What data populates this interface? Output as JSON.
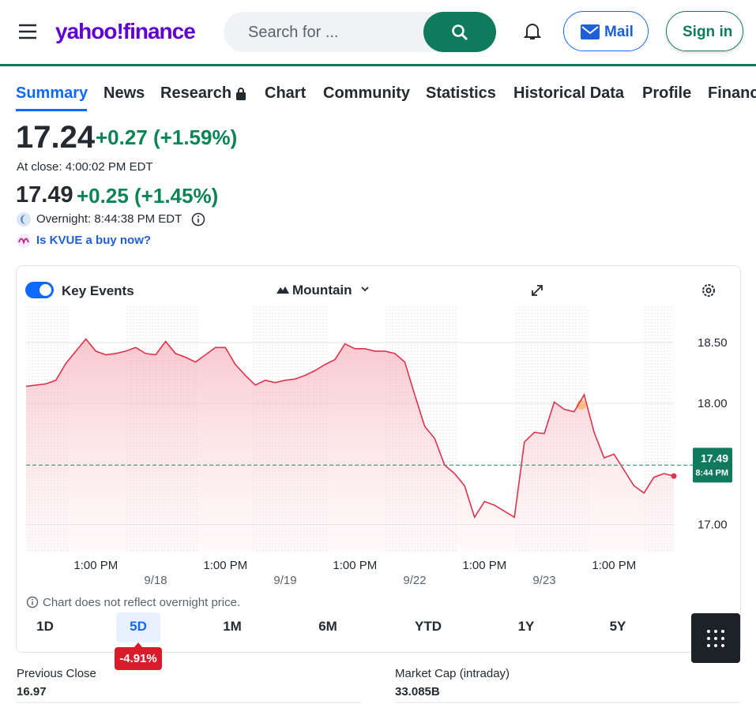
{
  "header": {
    "logo": "yahoo!finance",
    "search_placeholder": "Search for ...",
    "mail": "Mail",
    "sign_in": "Sign in"
  },
  "nav": [
    "Summary",
    "News",
    "Research",
    "Chart",
    "Community",
    "Statistics",
    "Historical Data",
    "Profile",
    "Financials"
  ],
  "quote": {
    "price": "17.24",
    "change": "+0.27 (+1.59%)",
    "close_time": "At close: 4:00:02 PM EDT",
    "overnight_price": "17.49",
    "overnight_change": "+0.25 (+1.45%)",
    "overnight_time": "Overnight: 8:44:38 PM EDT",
    "buy_link": "Is KVUE a buy now?"
  },
  "chart_controls": {
    "key_events": "Key Events",
    "chart_type": "Mountain"
  },
  "chart_data": {
    "type": "line",
    "color": "#e0314b",
    "x": [
      0,
      0.5,
      1,
      1.5,
      2,
      2.5,
      3,
      3.5,
      4,
      4.5,
      5,
      5.5,
      6,
      6.5,
      7,
      7.5,
      8,
      8.5,
      9,
      9.5,
      10,
      10.5,
      11,
      11.5,
      12,
      12.5,
      13,
      13.5,
      14,
      14.5,
      15,
      15.5,
      16,
      16.5,
      17,
      17.5,
      18,
      18.5,
      19,
      19.5,
      20,
      20.5,
      21,
      21.5,
      22,
      22.5,
      23,
      23.5,
      24,
      24.5,
      25,
      25.5,
      26,
      26.5,
      27,
      27.5,
      28,
      28.5,
      29,
      29.5,
      30,
      30.5,
      31,
      31.5,
      32,
      32.5
    ],
    "values": [
      18.14,
      18.15,
      18.16,
      18.19,
      18.33,
      18.43,
      18.53,
      18.43,
      18.4,
      18.41,
      18.43,
      18.46,
      18.41,
      18.4,
      18.51,
      18.41,
      18.38,
      18.34,
      18.4,
      18.46,
      18.46,
      18.32,
      18.23,
      18.15,
      18.19,
      18.17,
      18.19,
      18.2,
      18.23,
      18.27,
      18.32,
      18.36,
      18.49,
      18.45,
      18.45,
      18.43,
      18.43,
      18.41,
      18.34,
      18.07,
      17.81,
      17.71,
      17.49,
      17.42,
      17.32,
      17.06,
      17.19,
      17.16,
      17.11,
      17.06,
      17.68,
      17.76,
      17.75,
      18.01,
      17.95,
      17.93,
      18.07,
      17.76,
      17.55,
      17.58,
      17.45,
      17.32,
      17.26,
      17.39,
      17.42,
      17.4
    ],
    "xlim": [
      0,
      32.5
    ],
    "xticks": [
      {
        "value": 3.5,
        "label": "1:00 PM"
      },
      {
        "value": 10,
        "label": "1:00 PM"
      },
      {
        "value": 16.5,
        "label": "1:00 PM"
      },
      {
        "value": 23,
        "label": "1:00 PM"
      },
      {
        "value": 29.5,
        "label": "1:00 PM"
      }
    ],
    "date_ticks": [
      {
        "value": 6.5,
        "label": "9/18"
      },
      {
        "value": 13,
        "label": "9/19"
      },
      {
        "value": 19.5,
        "label": "9/22"
      },
      {
        "value": 26,
        "label": "9/23"
      }
    ],
    "ylim": [
      16.77,
      18.8
    ],
    "yticks": [
      {
        "value": 17,
        "label": "17.00"
      },
      {
        "value": 18,
        "label": "18.00"
      },
      {
        "value": 18.5,
        "label": "18.50"
      }
    ],
    "grid": true,
    "marker_value": 17.49,
    "marker_time": "8:44 PM"
  },
  "note": "Chart does not reflect overnight price.",
  "ranges": [
    "1D",
    "5D",
    "1M",
    "6M",
    "YTD",
    "1Y",
    "5Y"
  ],
  "selected_range": 1,
  "selected_range_change": "-4.91%",
  "stats": [
    {
      "label": "Previous Close",
      "value": "16.97"
    },
    {
      "label": "Market Cap (intraday)",
      "value": "33.085B"
    }
  ]
}
